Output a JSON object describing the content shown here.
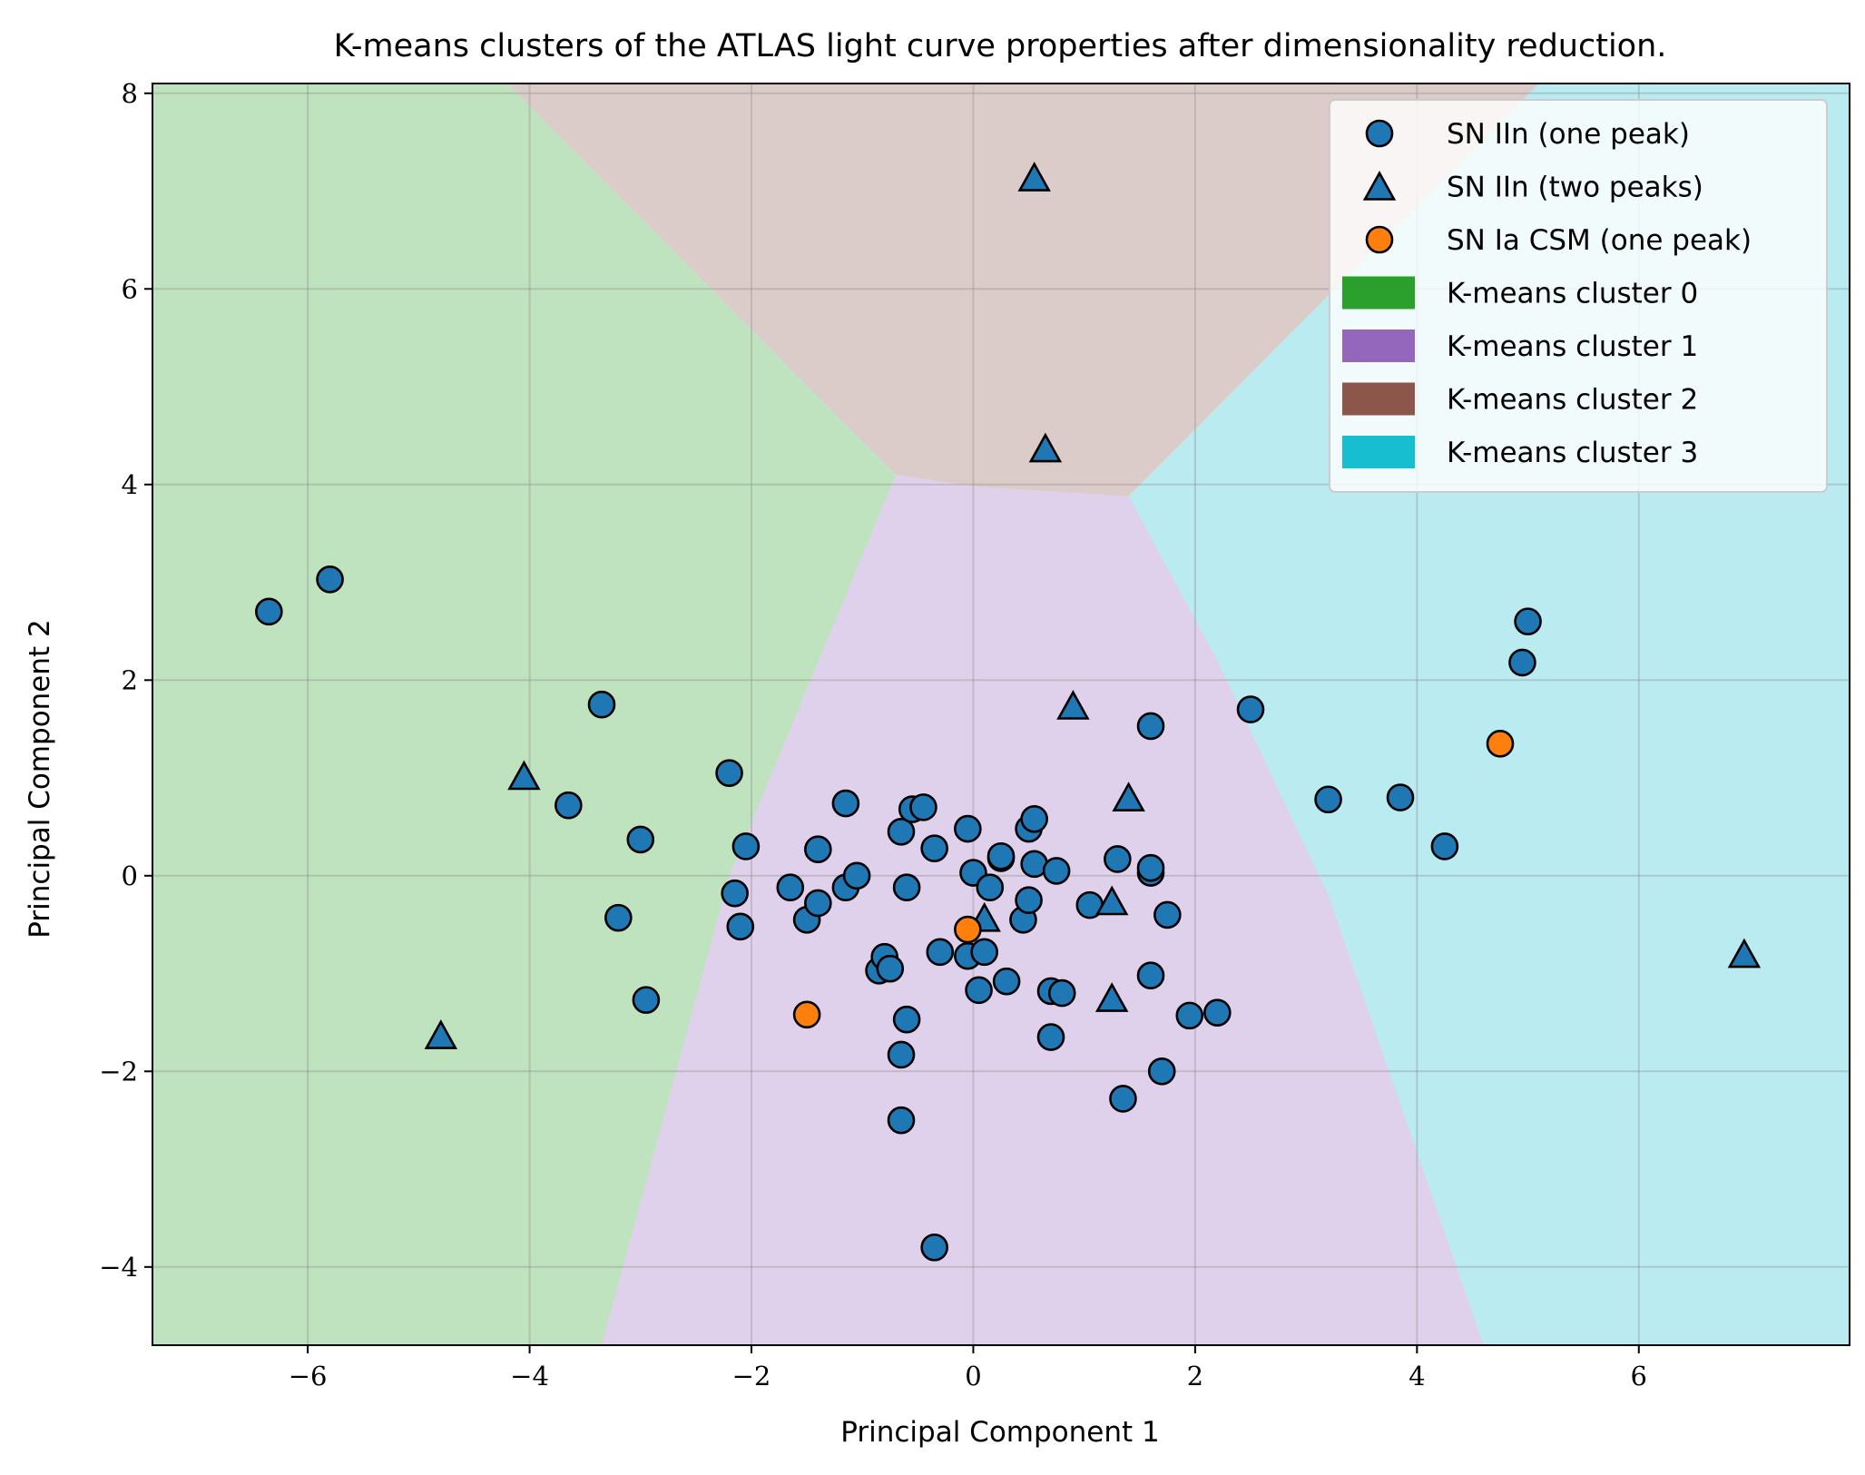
{
  "chart_data": {
    "type": "scatter",
    "title": "K-means clusters of the ATLAS light curve properties after dimensionality reduction.",
    "xlabel": "Principal Component 1",
    "ylabel": "Principal Component 2",
    "xlim": [
      -7.4,
      7.9
    ],
    "ylim": [
      -4.8,
      8.1
    ],
    "xticks": [
      -6,
      -4,
      -2,
      0,
      2,
      4,
      6
    ],
    "yticks": [
      -4,
      -2,
      0,
      2,
      4,
      6,
      8
    ],
    "xtick_labels": [
      "−6",
      "−4",
      "−2",
      "0",
      "2",
      "4",
      "6"
    ],
    "ytick_labels": [
      "−4",
      "−2",
      "0",
      "2",
      "4",
      "6",
      "8"
    ],
    "grid": true,
    "legend_position": "upper right",
    "regions": [
      {
        "cluster": 0,
        "color": "#2ca02c",
        "polygon": [
          [
            -7.4,
            8.1
          ],
          [
            -4.2,
            8.1
          ],
          [
            -0.7,
            4.1
          ],
          [
            -1.1,
            3.0
          ],
          [
            -2.2,
            0.0
          ],
          [
            -3.35,
            -4.8
          ],
          [
            -7.4,
            -4.8
          ]
        ]
      },
      {
        "cluster": 1,
        "color": "#9467bd",
        "polygon": [
          [
            -0.7,
            4.1
          ],
          [
            0.0,
            3.98
          ],
          [
            1.4,
            3.88
          ],
          [
            2.2,
            2.2
          ],
          [
            3.2,
            -0.2
          ],
          [
            4.6,
            -4.8
          ],
          [
            -3.35,
            -4.8
          ],
          [
            -2.2,
            0.0
          ],
          [
            -1.1,
            3.0
          ]
        ]
      },
      {
        "cluster": 2,
        "color": "#8c564b",
        "polygon": [
          [
            -4.2,
            8.1
          ],
          [
            5.1,
            8.1
          ],
          [
            1.4,
            3.88
          ],
          [
            0.0,
            3.98
          ],
          [
            -0.7,
            4.1
          ]
        ]
      },
      {
        "cluster": 3,
        "color": "#17becf",
        "polygon": [
          [
            5.1,
            8.1
          ],
          [
            7.9,
            8.1
          ],
          [
            7.9,
            -4.8
          ],
          [
            4.6,
            -4.8
          ],
          [
            3.2,
            -0.2
          ],
          [
            2.2,
            2.2
          ],
          [
            1.4,
            3.88
          ]
        ]
      }
    ],
    "series": [
      {
        "name": "SN IIn (one peak)",
        "marker": "circle",
        "color": "#1f77b4",
        "points": [
          [
            -6.35,
            2.7
          ],
          [
            -5.8,
            3.03
          ],
          [
            -3.35,
            1.75
          ],
          [
            -3.65,
            0.72
          ],
          [
            -3.0,
            0.37
          ],
          [
            -3.2,
            -0.43
          ],
          [
            -2.95,
            -1.27
          ],
          [
            -2.2,
            1.05
          ],
          [
            -2.05,
            0.3
          ],
          [
            -2.15,
            -0.18
          ],
          [
            -2.1,
            -0.52
          ],
          [
            -1.65,
            -0.12
          ],
          [
            -1.5,
            -0.45
          ],
          [
            -1.4,
            -0.28
          ],
          [
            -1.4,
            0.27
          ],
          [
            -1.15,
            0.74
          ],
          [
            -1.15,
            -0.12
          ],
          [
            -1.05,
            0.0
          ],
          [
            -0.85,
            -0.97
          ],
          [
            -0.8,
            -0.83
          ],
          [
            -0.75,
            -0.95
          ],
          [
            -0.65,
            0.45
          ],
          [
            -0.55,
            0.68
          ],
          [
            -0.45,
            0.7
          ],
          [
            -0.6,
            -0.12
          ],
          [
            -0.6,
            -1.47
          ],
          [
            -0.65,
            -1.83
          ],
          [
            -0.65,
            -2.5
          ],
          [
            -0.35,
            0.28
          ],
          [
            -0.3,
            -0.78
          ],
          [
            -0.35,
            -3.8
          ],
          [
            -0.05,
            0.48
          ],
          [
            0.0,
            0.03
          ],
          [
            -0.05,
            -0.82
          ],
          [
            0.1,
            -0.78
          ],
          [
            0.15,
            -0.12
          ],
          [
            0.05,
            -1.17
          ],
          [
            0.25,
            0.18
          ],
          [
            0.25,
            0.2
          ],
          [
            0.3,
            -1.08
          ],
          [
            0.45,
            -0.45
          ],
          [
            0.5,
            0.48
          ],
          [
            0.55,
            0.58
          ],
          [
            0.55,
            0.12
          ],
          [
            0.5,
            -0.25
          ],
          [
            0.75,
            0.05
          ],
          [
            0.7,
            -1.18
          ],
          [
            0.8,
            -1.2
          ],
          [
            0.7,
            -1.65
          ],
          [
            1.05,
            -0.3
          ],
          [
            1.3,
            0.17
          ],
          [
            1.6,
            0.03
          ],
          [
            1.6,
            0.08
          ],
          [
            1.75,
            -0.4
          ],
          [
            1.6,
            -1.02
          ],
          [
            1.6,
            1.53
          ],
          [
            1.35,
            -2.28
          ],
          [
            1.7,
            -2.0
          ],
          [
            1.95,
            -1.43
          ],
          [
            2.2,
            -1.4
          ],
          [
            2.5,
            1.7
          ],
          [
            3.2,
            0.78
          ],
          [
            3.85,
            0.8
          ],
          [
            4.25,
            0.3
          ],
          [
            4.95,
            2.18
          ],
          [
            5.0,
            2.6
          ]
        ]
      },
      {
        "name": "SN IIn (two peaks)",
        "marker": "triangle",
        "color": "#1f77b4",
        "points": [
          [
            0.55,
            7.12
          ],
          [
            0.65,
            4.35
          ],
          [
            0.9,
            1.72
          ],
          [
            1.4,
            0.78
          ],
          [
            1.25,
            -0.28
          ],
          [
            1.25,
            -1.27
          ],
          [
            0.1,
            -0.45
          ],
          [
            -4.05,
            1.0
          ],
          [
            -4.8,
            -1.65
          ],
          [
            6.95,
            -0.82
          ]
        ]
      },
      {
        "name": "SN Ia CSM (one peak)",
        "marker": "circle",
        "color": "#ff7f0e",
        "points": [
          [
            -1.5,
            -1.42
          ],
          [
            -0.05,
            -0.55
          ],
          [
            4.75,
            1.35
          ]
        ]
      }
    ],
    "legend": [
      {
        "label": "SN IIn (one peak)",
        "kind": "circle",
        "color": "#1f77b4"
      },
      {
        "label": "SN IIn (two peaks)",
        "kind": "triangle",
        "color": "#1f77b4"
      },
      {
        "label": "SN Ia CSM (one peak)",
        "kind": "circle",
        "color": "#ff7f0e"
      },
      {
        "label": "K-means cluster 0",
        "kind": "patch",
        "color": "#2ca02c"
      },
      {
        "label": "K-means cluster 1",
        "kind": "patch",
        "color": "#9467bd"
      },
      {
        "label": "K-means cluster 2",
        "kind": "patch",
        "color": "#8c564b"
      },
      {
        "label": "K-means cluster 3",
        "kind": "patch",
        "color": "#17becf"
      }
    ]
  }
}
